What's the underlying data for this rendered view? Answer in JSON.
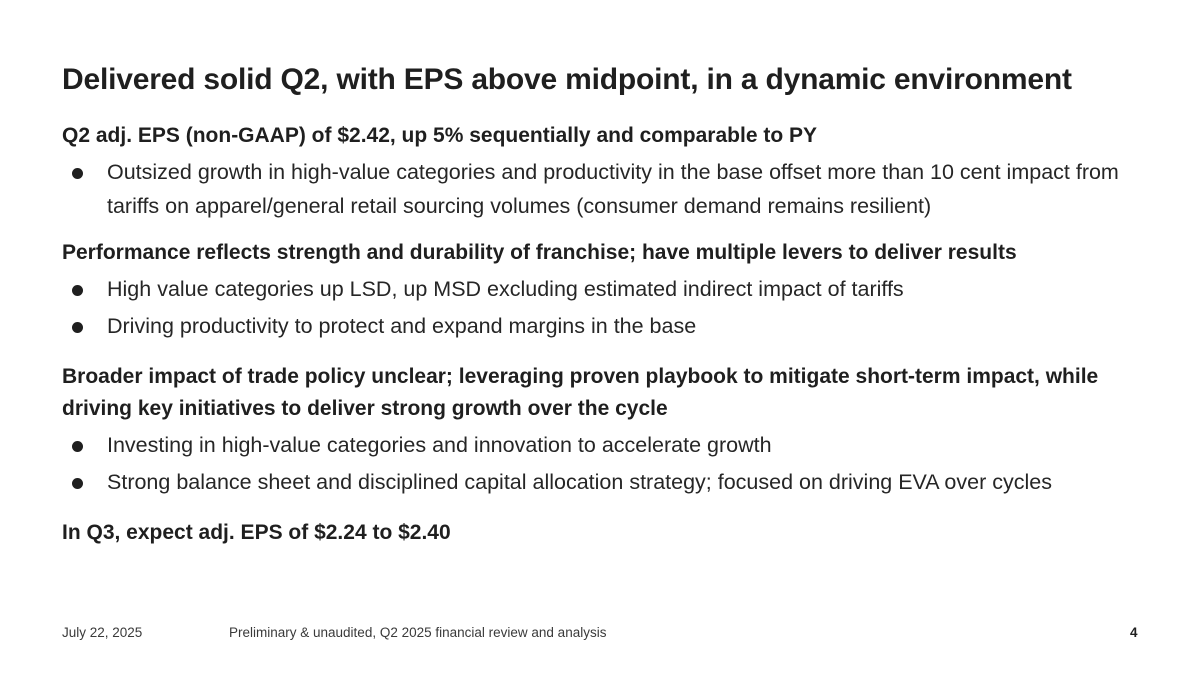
{
  "slide": {
    "title": "Delivered solid Q2, with EPS above midpoint, in a dynamic environment",
    "sections": [
      {
        "heading": "Q2 adj. EPS (non-GAAP) of $2.42, up 5% sequentially and comparable to PY",
        "bullets": [
          "Outsized growth in high-value categories and productivity in the base offset more than 10 cent impact from tariffs on apparel/general retail sourcing volumes (consumer demand remains resilient)"
        ]
      },
      {
        "heading": "Performance reflects strength and durability of franchise; have multiple levers to deliver results",
        "bullets": [
          "High value categories up LSD, up MSD excluding estimated indirect impact of tariffs",
          "Driving productivity to protect and expand margins in the base"
        ]
      },
      {
        "heading": "Broader impact of trade policy unclear; leveraging proven playbook to mitigate short-term impact, while driving key initiatives to deliver strong growth over the cycle",
        "bullets": [
          "Investing in high-value categories and innovation to accelerate growth",
          "Strong balance sheet and disciplined capital allocation strategy; focused on driving EVA over cycles"
        ]
      },
      {
        "heading": "In Q3, expect adj. EPS of $2.24 to $2.40",
        "bullets": []
      }
    ]
  },
  "footer": {
    "date": "July 22, 2025",
    "note": "Preliminary & unaudited, Q2 2025 financial review and analysis",
    "page_number": "4"
  }
}
